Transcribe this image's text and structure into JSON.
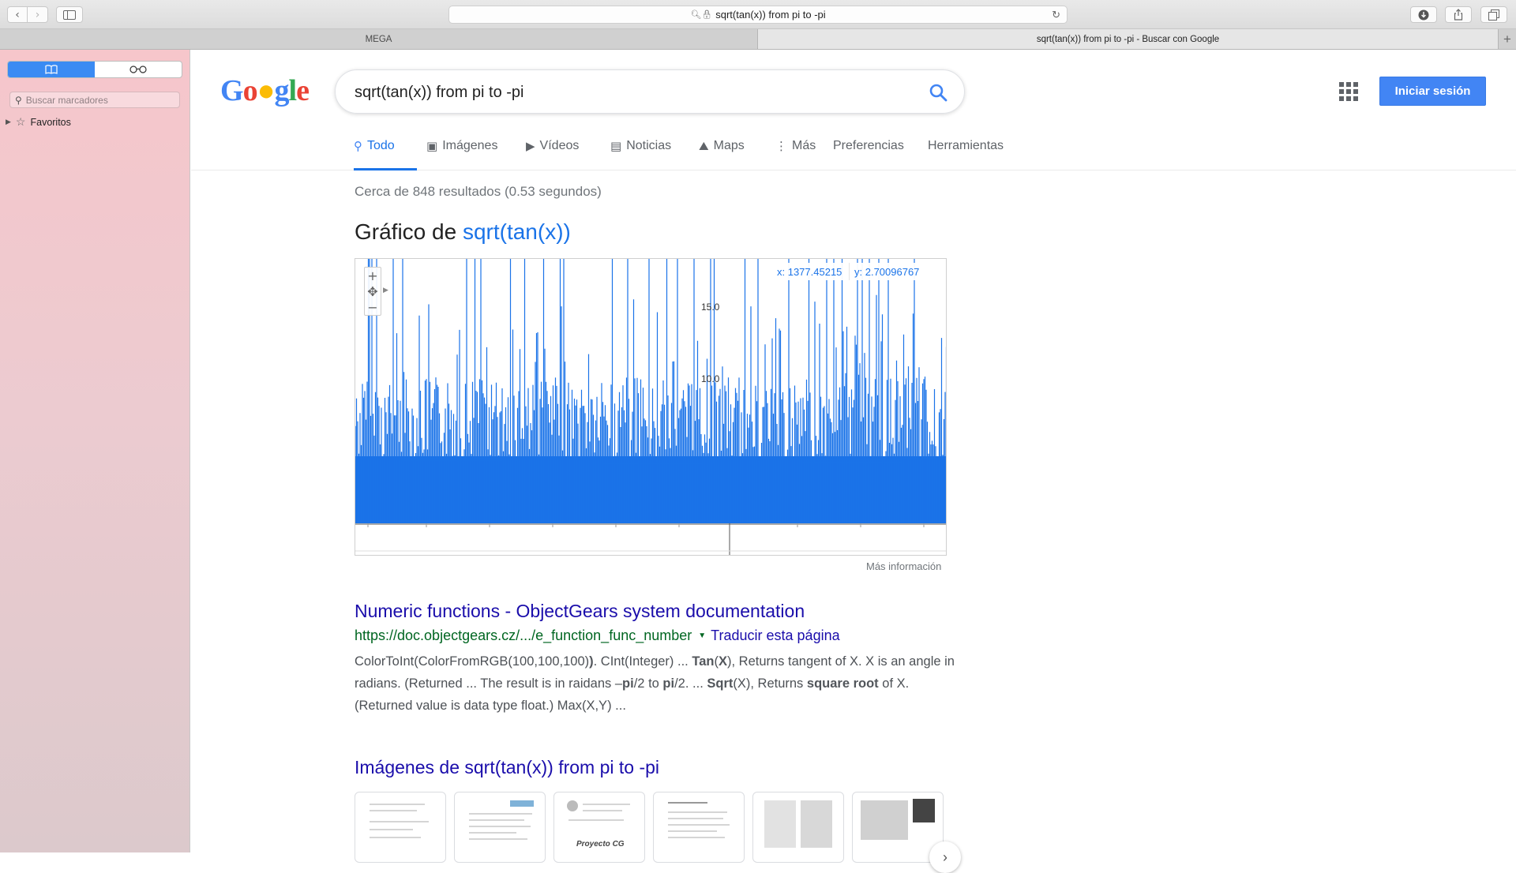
{
  "browser": {
    "address": "sqrt(tan(x)) from pi to -pi",
    "tabs": [
      {
        "label": "MEGA"
      },
      {
        "label": "sqrt(tan(x)) from pi to -pi - Buscar con Google"
      }
    ],
    "new_tab_label": "+"
  },
  "sidebar": {
    "search_placeholder": "Buscar marcadores",
    "favorites_label": "Favoritos"
  },
  "google": {
    "query": "sqrt(tan(x)) from pi to -pi",
    "signin_label": "Iniciar sesión",
    "tabs": [
      {
        "label": "Todo",
        "icon": "search-icon"
      },
      {
        "label": "Imágenes",
        "icon": "image-icon"
      },
      {
        "label": "Vídeos",
        "icon": "video-icon"
      },
      {
        "label": "Noticias",
        "icon": "news-icon"
      },
      {
        "label": "Maps",
        "icon": "map-icon"
      },
      {
        "label": "Más",
        "icon": "more-vert-icon"
      },
      {
        "label": "Preferencias",
        "icon": ""
      },
      {
        "label": "Herramientas",
        "icon": ""
      }
    ],
    "result_stats": "Cerca de 848 resultados (0.53 segundos)",
    "graph": {
      "title_prefix": "Gráfico de ",
      "title_function": "sqrt(tan(x))",
      "coord_x": "x: 1377.45215",
      "coord_y": "y: 2.70096767",
      "tick_15": "15.0",
      "tick_10": "10.0",
      "more_info": "Más información",
      "color": "#1a73e8"
    },
    "result": {
      "title": "Numeric functions - ObjectGears system documentation",
      "url": "https://doc.objectgears.cz/.../e_function_func_number",
      "translate": "Traducir esta página"
    },
    "images_title": "Imágenes de sqrt(tan(x)) from pi to -pi",
    "thumb_caption": "Proyecto CG"
  },
  "chart_data": {
    "type": "line",
    "title": "",
    "series": [
      {
        "values": []
      }
    ],
    "yticks": [
      10.0,
      15.0
    ],
    "cursor": {
      "x": 1377.45215,
      "y": 2.70096767
    }
  }
}
